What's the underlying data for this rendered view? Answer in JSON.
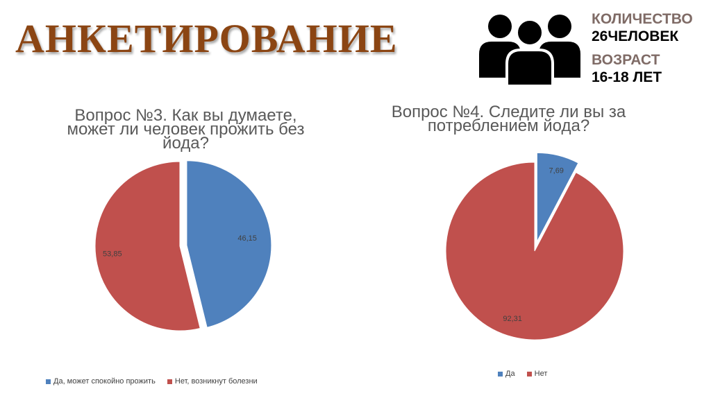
{
  "header": {
    "title": "АНКЕТИРОВАНИЕ",
    "count_label": "КОЛИЧЕСТВО",
    "count_value": "26ЧЕЛОВЕК",
    "age_label": "ВОЗРАСТ",
    "age_value": "16-18 ЛЕТ",
    "icon": "people-group-icon"
  },
  "colors": {
    "blue": "#4f81bd",
    "red": "#c0504d",
    "title": "#8B4513"
  },
  "chart_data": [
    {
      "type": "pie",
      "title_lines": [
        "Вопрос №3. Как вы думаете,",
        "может ли человек прожить без",
        "йода?"
      ],
      "slices": [
        {
          "label": "Да, может спокойно прожить",
          "value": 46.15,
          "value_label": "46,15",
          "color": "#4f81bd",
          "exploded": true
        },
        {
          "label": "Нет, возникнут болезни",
          "value": 53.85,
          "value_label": "53,85",
          "color": "#c0504d",
          "exploded": false
        }
      ],
      "legend_position": "bottom"
    },
    {
      "type": "pie",
      "title_lines": [
        "Вопрос №4. Следите ли вы за",
        "потреблением йода?"
      ],
      "slices": [
        {
          "label": "Да",
          "value": 7.69,
          "value_label": "7,69",
          "color": "#4f81bd",
          "exploded": true
        },
        {
          "label": "Нет",
          "value": 92.31,
          "value_label": "92,31",
          "color": "#c0504d",
          "exploded": false
        }
      ],
      "legend_position": "bottom"
    }
  ]
}
